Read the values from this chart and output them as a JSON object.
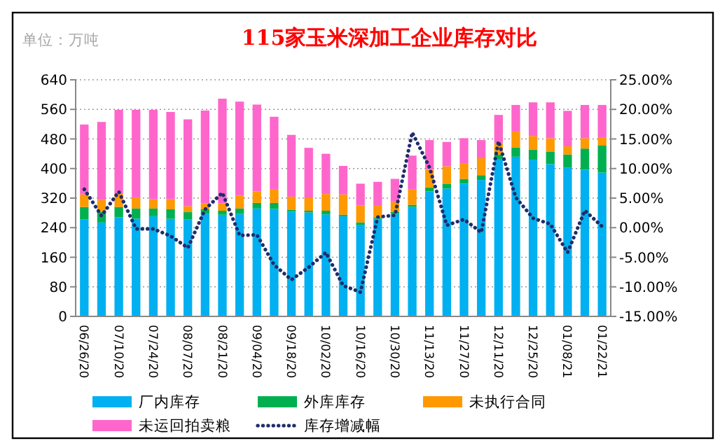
{
  "chart_data": {
    "type": "bar",
    "title": "115家玉米深加工企业库存对比",
    "annotations": [
      "单位：万吨"
    ],
    "stacked": true,
    "grid": "y",
    "legend": "bottom",
    "categories": [
      "06/26/20",
      null,
      "07/10/20",
      null,
      "07/24/20",
      null,
      "08/07/20",
      null,
      "08/21/20",
      null,
      "09/04/20",
      null,
      "09/18/20",
      null,
      "10/02/20",
      null,
      "10/16/20",
      null,
      "10/30/20",
      null,
      "11/13/20",
      null,
      "11/27/20",
      null,
      "12/11/20",
      null,
      "12/25/20",
      null,
      "01/08/21",
      null,
      "01/22/21"
    ],
    "ylim": [
      0,
      640
    ],
    "yticks": [
      0,
      80,
      160,
      240,
      320,
      400,
      480,
      560,
      640
    ],
    "y2lim": [
      -15,
      25
    ],
    "y2ticks": [
      {
        "value": -15,
        "label": "-15.00%"
      },
      {
        "value": -10,
        "label": "-10.00%"
      },
      {
        "value": -5,
        "label": "-5.00%"
      },
      {
        "value": 0,
        "label": "0.00%"
      },
      {
        "value": 5,
        "label": "5.00%"
      },
      {
        "value": 10,
        "label": "10.00%"
      },
      {
        "value": 15,
        "label": "15.00%"
      },
      {
        "value": 20,
        "label": "20.00%"
      },
      {
        "value": 25,
        "label": "25.00%"
      }
    ],
    "series": [
      {
        "name": "厂内库存",
        "color": "#00b0f0",
        "values": [
          262,
          254,
          268,
          264,
          271,
          264,
          262,
          277,
          275,
          277,
          292,
          291,
          283,
          281,
          276,
          271,
          248,
          264,
          277,
          296,
          338,
          346,
          359,
          369,
          426,
          432,
          424,
          412,
          403,
          397,
          389
        ]
      },
      {
        "name": "外库库存",
        "color": "#00b050",
        "values": [
          34,
          29,
          28,
          28,
          21,
          26,
          20,
          13,
          11,
          15,
          15,
          16,
          5,
          5,
          10,
          4,
          6,
          4,
          6,
          6,
          11,
          13,
          13,
          13,
          12,
          25,
          27,
          33,
          35,
          57,
          73
        ]
      },
      {
        "name": "未执行合同",
        "color": "#ff9900",
        "values": [
          34,
          32,
          35,
          30,
          25,
          27,
          16,
          16,
          20,
          35,
          31,
          36,
          36,
          34,
          45,
          55,
          46,
          31,
          26,
          41,
          48,
          47,
          41,
          46,
          31,
          43,
          37,
          37,
          22,
          28,
          21
        ]
      },
      {
        "name": "未运回拍卖粮",
        "color": "#ff66cc",
        "values": [
          189,
          211,
          228,
          237,
          242,
          236,
          235,
          251,
          283,
          254,
          235,
          197,
          167,
          136,
          109,
          77,
          59,
          65,
          63,
          92,
          80,
          66,
          69,
          49,
          76,
          72,
          91,
          97,
          96,
          90,
          89
        ]
      },
      {
        "name": "库存增减幅",
        "type": "line",
        "axis": "y2",
        "color": "#1f2d6b",
        "line_style": "dotted",
        "marker": "none",
        "values": [
          6.5,
          2.0,
          6.1,
          -0.2,
          -0.2,
          -1.4,
          -3.4,
          3.1,
          5.9,
          -1.3,
          -1.2,
          -6.3,
          -8.8,
          -6.7,
          -4.2,
          -9.8,
          -10.9,
          1.8,
          2.1,
          16.1,
          10.2,
          0.4,
          1.4,
          -0.8,
          14.6,
          5.1,
          1.6,
          0.6,
          -4.2,
          2.9,
          0.2
        ]
      }
    ]
  }
}
